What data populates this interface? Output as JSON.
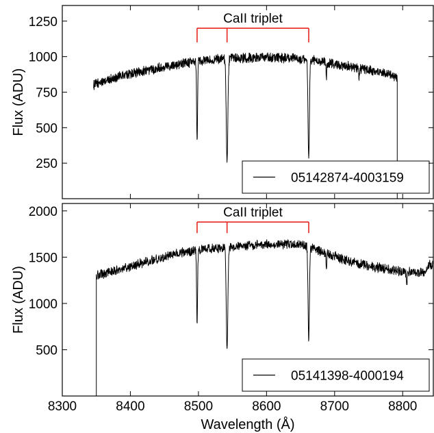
{
  "chart_data": [
    {
      "type": "line",
      "panel": "top",
      "xlabel": "",
      "ylabel": "Flux (ADU)",
      "xlim": [
        8300,
        8845
      ],
      "ylim": [
        0,
        1360
      ],
      "x_ticks": [
        8300,
        8400,
        8500,
        8600,
        8700,
        8800
      ],
      "x_tick_labels_shown": false,
      "y_ticks": [
        250,
        500,
        750,
        1000,
        1250
      ],
      "legend": {
        "placement": "lower-right",
        "entries": [
          "05142874-4003159"
        ]
      },
      "annotation": {
        "text": "CaII triplet",
        "color": "#e8251e",
        "bracket_x": [
          8498,
          8542,
          8662
        ],
        "bracket_y": 1200,
        "bracket_tick_bottom": 1100
      },
      "series": [
        {
          "label": "05142874-4003159",
          "color": "#000000",
          "x_start": 8346,
          "x_end": 8792,
          "continuum": [
            [
              8346,
              800
            ],
            [
              8370,
              840
            ],
            [
              8400,
              880
            ],
            [
              8430,
              910
            ],
            [
              8460,
              940
            ],
            [
              8490,
              960
            ],
            [
              8510,
              975
            ],
            [
              8540,
              985
            ],
            [
              8570,
              990
            ],
            [
              8600,
              995
            ],
            [
              8630,
              990
            ],
            [
              8660,
              980
            ],
            [
              8690,
              955
            ],
            [
              8720,
              930
            ],
            [
              8750,
              905
            ],
            [
              8780,
              880
            ],
            [
              8792,
              850
            ]
          ],
          "noise": 30,
          "absorption_lines": [
            {
              "center": 8498,
              "depth": 0.58,
              "width": 0.7
            },
            {
              "center": 8542,
              "depth": 0.73,
              "width": 1.2
            },
            {
              "center": 8662,
              "depth": 0.72,
              "width": 1.0
            },
            {
              "center": 8688,
              "depth": 0.12,
              "width": 0.5
            },
            {
              "center": 8736,
              "depth": 0.08,
              "width": 0.5
            }
          ],
          "end_drop_to": 0
        }
      ]
    },
    {
      "type": "line",
      "panel": "bottom",
      "xlabel": "Wavelength (Å)",
      "ylabel": "Flux (ADU)",
      "xlim": [
        8300,
        8845
      ],
      "ylim": [
        0,
        2080
      ],
      "x_ticks": [
        8300,
        8400,
        8500,
        8600,
        8700,
        8800
      ],
      "x_tick_labels_shown": true,
      "y_ticks": [
        500,
        1000,
        1500,
        2000
      ],
      "legend": {
        "placement": "lower-right",
        "entries": [
          "05141398-4000194"
        ]
      },
      "annotation": {
        "text": "CaII triplet",
        "color": "#e8251e",
        "bracket_x": [
          8498,
          8542,
          8662
        ],
        "bracket_y": 1880,
        "bracket_tick_bottom": 1760
      },
      "series": [
        {
          "label": "05141398-4000194",
          "color": "#000000",
          "x_start": 8350,
          "x_end": 8845,
          "start_rise_from": 0,
          "continuum": [
            [
              8350,
              1300
            ],
            [
              8380,
              1360
            ],
            [
              8410,
              1420
            ],
            [
              8440,
              1480
            ],
            [
              8470,
              1540
            ],
            [
              8500,
              1580
            ],
            [
              8530,
              1600
            ],
            [
              8560,
              1620
            ],
            [
              8590,
              1635
            ],
            [
              8620,
              1640
            ],
            [
              8650,
              1640
            ],
            [
              8680,
              1560
            ],
            [
              8710,
              1480
            ],
            [
              8740,
              1420
            ],
            [
              8770,
              1380
            ],
            [
              8800,
              1340
            ],
            [
              8830,
              1330
            ],
            [
              8840,
              1420
            ]
          ],
          "noise": 45,
          "absorption_lines": [
            {
              "center": 8498,
              "depth": 0.52,
              "width": 0.7
            },
            {
              "center": 8542,
              "depth": 0.68,
              "width": 1.2
            },
            {
              "center": 8662,
              "depth": 0.62,
              "width": 1.0
            },
            {
              "center": 8688,
              "depth": 0.12,
              "width": 0.5
            },
            {
              "center": 8806,
              "depth": 0.12,
              "width": 0.5
            }
          ],
          "end_spike_to": 1630
        }
      ]
    }
  ]
}
